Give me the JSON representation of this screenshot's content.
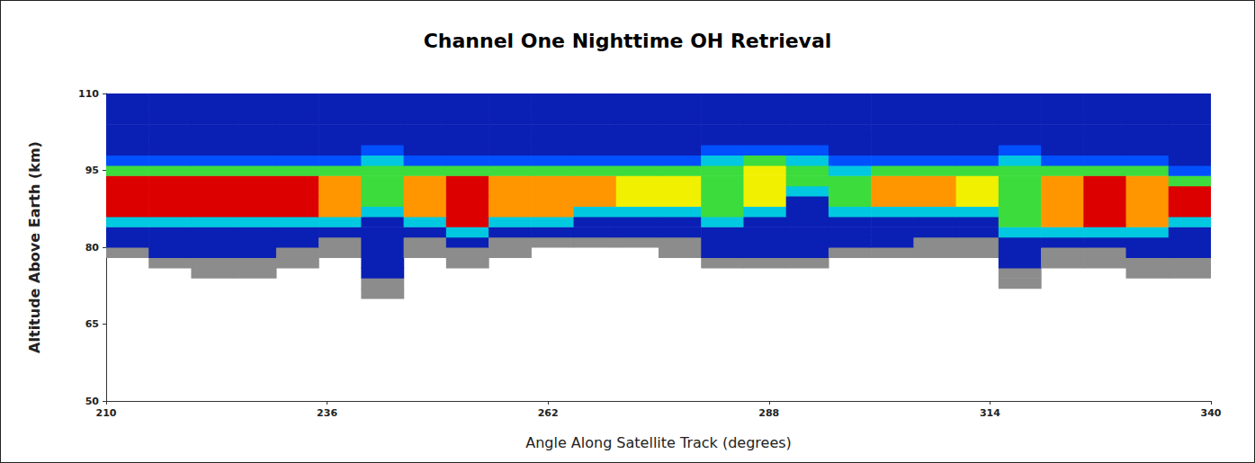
{
  "chart_data": {
    "type": "heatmap",
    "title": "Channel One Nighttime OH Retrieval",
    "x_label": "Angle Along Satellite Track (degrees)",
    "y_label": "Altitude Above Earth (km)",
    "xlim": [
      210,
      340
    ],
    "xticks": [
      210,
      236,
      262,
      288,
      314,
      340
    ],
    "ylim": [
      50,
      110
    ],
    "yticks": [
      50,
      65,
      80,
      95,
      110
    ],
    "grid": false,
    "zlim": [
      1,
      8
    ],
    "x_bins": [
      210,
      215,
      220,
      225,
      230,
      235,
      240,
      245,
      250,
      255,
      260,
      265,
      270,
      275,
      280,
      285,
      290,
      295,
      300,
      305,
      310,
      315,
      320,
      325,
      330,
      335,
      340
    ],
    "y_bins": [
      70,
      72,
      74,
      76,
      78,
      80,
      82,
      84,
      86,
      88,
      90,
      92,
      94,
      96,
      98,
      100,
      102,
      104,
      106,
      108,
      110
    ],
    "cells": [
      [
        null,
        null,
        null,
        null,
        null,
        null,
        1,
        null,
        null,
        null,
        null,
        null,
        null,
        null,
        null,
        null,
        null,
        null,
        null,
        null,
        null,
        null,
        null,
        null,
        null,
        null
      ],
      [
        null,
        null,
        null,
        null,
        null,
        null,
        1,
        null,
        null,
        null,
        null,
        null,
        null,
        null,
        null,
        null,
        null,
        null,
        null,
        null,
        null,
        1,
        null,
        null,
        null,
        null
      ],
      [
        null,
        null,
        1,
        1,
        null,
        null,
        2,
        null,
        null,
        null,
        null,
        null,
        null,
        null,
        null,
        null,
        null,
        null,
        null,
        null,
        null,
        1,
        null,
        null,
        1,
        1
      ],
      [
        null,
        1,
        1,
        1,
        1,
        null,
        2,
        null,
        1,
        null,
        null,
        null,
        null,
        null,
        1,
        1,
        1,
        null,
        null,
        null,
        null,
        2,
        1,
        1,
        1,
        1
      ],
      [
        1,
        2,
        2,
        2,
        1,
        1,
        2,
        1,
        1,
        1,
        null,
        null,
        null,
        1,
        2,
        2,
        2,
        1,
        1,
        1,
        1,
        2,
        1,
        1,
        2,
        2
      ],
      [
        2,
        2,
        2,
        2,
        2,
        1,
        2,
        1,
        2,
        1,
        1,
        1,
        1,
        1,
        2,
        2,
        2,
        2,
        2,
        1,
        1,
        2,
        2,
        2,
        2,
        2
      ],
      [
        2,
        2,
        2,
        2,
        2,
        2,
        2,
        2,
        4,
        2,
        2,
        2,
        2,
        2,
        2,
        2,
        2,
        2,
        2,
        2,
        2,
        4,
        4,
        4,
        4,
        2
      ],
      [
        4,
        4,
        4,
        4,
        4,
        4,
        2,
        4,
        8,
        4,
        4,
        2,
        2,
        2,
        4,
        2,
        2,
        2,
        2,
        2,
        2,
        5,
        7,
        8,
        7,
        4
      ],
      [
        8,
        8,
        8,
        8,
        8,
        7,
        4,
        7,
        8,
        7,
        7,
        4,
        4,
        4,
        5,
        4,
        2,
        4,
        4,
        4,
        4,
        5,
        7,
        8,
        7,
        8
      ],
      [
        8,
        8,
        8,
        8,
        8,
        7,
        5,
        7,
        8,
        7,
        7,
        7,
        6,
        6,
        5,
        6,
        2,
        5,
        7,
        7,
        6,
        5,
        7,
        8,
        7,
        8
      ],
      [
        8,
        8,
        8,
        8,
        8,
        7,
        5,
        7,
        8,
        7,
        7,
        7,
        6,
        6,
        5,
        6,
        4,
        5,
        7,
        7,
        6,
        5,
        7,
        8,
        7,
        8
      ],
      [
        8,
        8,
        8,
        8,
        8,
        7,
        5,
        7,
        8,
        7,
        7,
        7,
        6,
        6,
        5,
        6,
        5,
        5,
        7,
        7,
        6,
        5,
        7,
        8,
        7,
        5
      ],
      [
        5,
        5,
        5,
        5,
        5,
        5,
        5,
        5,
        5,
        5,
        5,
        5,
        5,
        5,
        5,
        6,
        5,
        4,
        5,
        5,
        5,
        5,
        5,
        5,
        5,
        3
      ],
      [
        3,
        3,
        3,
        3,
        3,
        3,
        4,
        3,
        3,
        3,
        3,
        3,
        3,
        3,
        4,
        5,
        4,
        3,
        3,
        3,
        3,
        4,
        3,
        3,
        3,
        2
      ],
      [
        2,
        2,
        2,
        2,
        2,
        2,
        3,
        2,
        2,
        2,
        2,
        2,
        2,
        2,
        3,
        3,
        3,
        2,
        2,
        2,
        2,
        3,
        2,
        2,
        2,
        2
      ],
      [
        2,
        2,
        2,
        2,
        2,
        2,
        2,
        2,
        2,
        2,
        2,
        2,
        2,
        2,
        2,
        2,
        2,
        2,
        2,
        2,
        2,
        2,
        2,
        2,
        2,
        2
      ],
      [
        2,
        2,
        2,
        2,
        2,
        2,
        2,
        2,
        2,
        2,
        2,
        2,
        2,
        2,
        2,
        2,
        2,
        2,
        2,
        2,
        2,
        2,
        2,
        2,
        2,
        2
      ],
      [
        2,
        2,
        2,
        2,
        2,
        2,
        2,
        2,
        2,
        2,
        2,
        2,
        2,
        2,
        2,
        2,
        2,
        2,
        2,
        2,
        2,
        2,
        2,
        2,
        2,
        2
      ],
      [
        2,
        2,
        2,
        2,
        2,
        2,
        2,
        2,
        2,
        2,
        2,
        2,
        2,
        2,
        2,
        2,
        2,
        2,
        2,
        2,
        2,
        2,
        2,
        2,
        2,
        2
      ],
      [
        2,
        2,
        2,
        2,
        2,
        2,
        2,
        2,
        2,
        2,
        2,
        2,
        2,
        2,
        2,
        2,
        2,
        2,
        2,
        2,
        2,
        2,
        2,
        2,
        2,
        2
      ]
    ]
  }
}
